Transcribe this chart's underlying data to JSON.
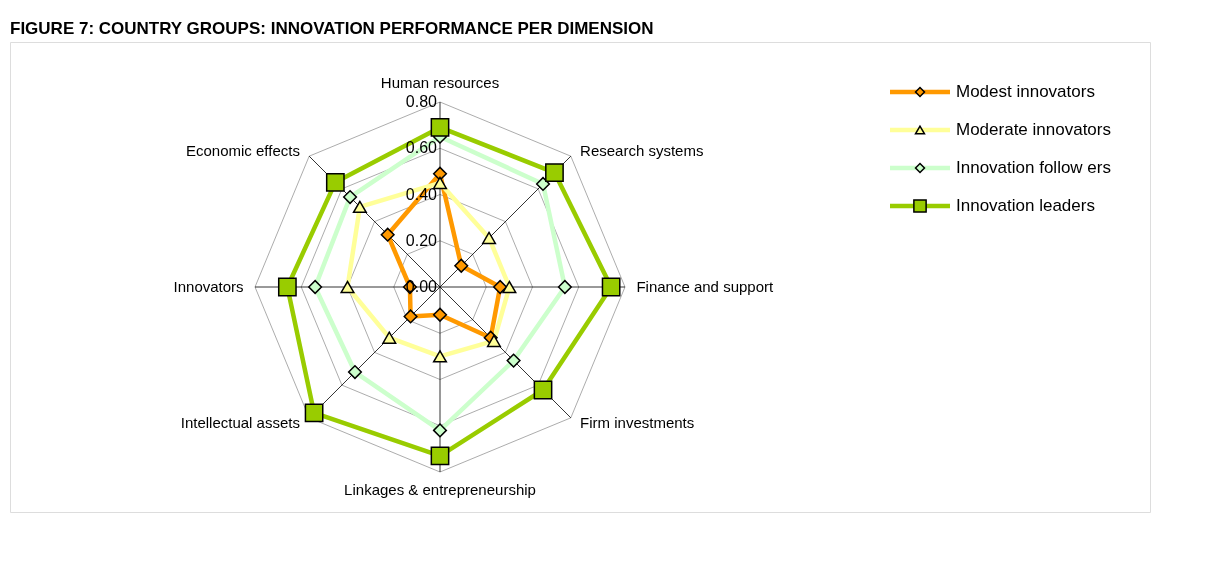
{
  "chart_data": {
    "type": "radar",
    "title": "FIGURE 7: COUNTRY GROUPS: INNOVATION PERFORMANCE PER DIMENSION",
    "categories": [
      "Human resources",
      "Research systems",
      "Finance and support",
      "Firm investments",
      "Linkages & entrepreneurship",
      "Intellectual assets",
      "Innovators",
      "Economic effects"
    ],
    "ylim": [
      0,
      0.8
    ],
    "yticks": [
      {
        "value": 0,
        "label": "0.00"
      },
      {
        "value": 0.2,
        "label": "0.20"
      },
      {
        "value": 0.4,
        "label": "0.40"
      },
      {
        "value": 0.6,
        "label": "0.60"
      },
      {
        "value": 0.8,
        "label": "0.80"
      }
    ],
    "grid": true,
    "legend": "top right",
    "series": [
      {
        "name": "Modest innovators",
        "color": "#ff9900",
        "marker": "diamond",
        "values": [
          0.49,
          0.13,
          0.26,
          0.31,
          0.12,
          0.18,
          0.13,
          0.32
        ]
      },
      {
        "name": "Moderate innovators",
        "color": "#ffff99",
        "marker": "triangle",
        "values": [
          0.45,
          0.3,
          0.3,
          0.33,
          0.3,
          0.31,
          0.4,
          0.49
        ]
      },
      {
        "name": "Innovation follow ers",
        "color": "#ccffcc",
        "marker": "diamond",
        "values": [
          0.65,
          0.63,
          0.54,
          0.45,
          0.62,
          0.52,
          0.54,
          0.55
        ]
      },
      {
        "name": "Innovation leaders",
        "color": "#99cc00",
        "marker": "square",
        "values": [
          0.69,
          0.7,
          0.74,
          0.63,
          0.73,
          0.77,
          0.66,
          0.64
        ]
      }
    ]
  }
}
